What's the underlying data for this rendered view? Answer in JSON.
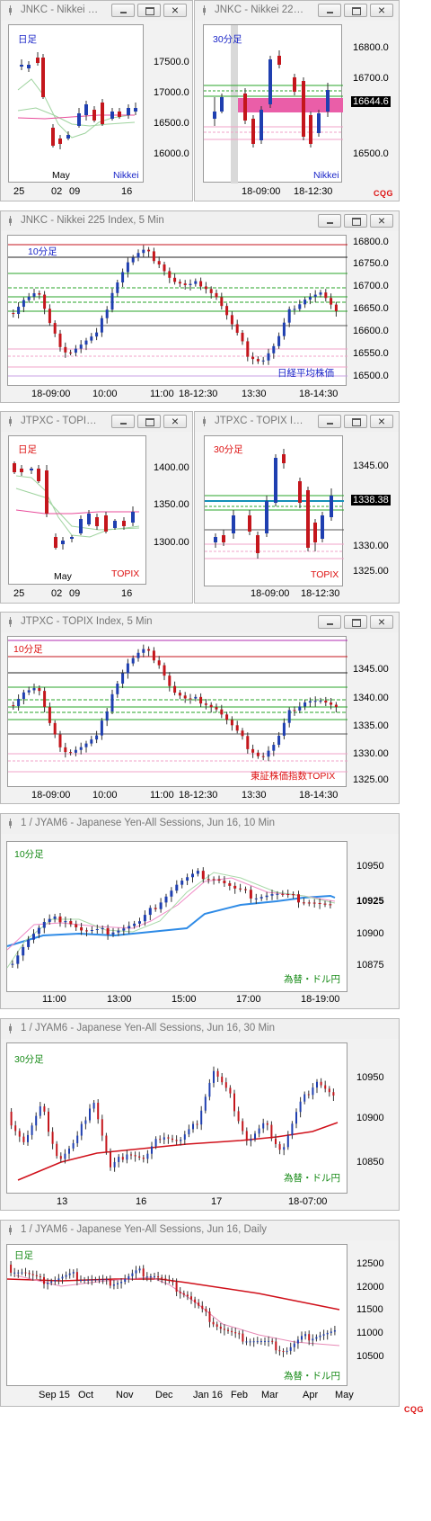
{
  "windows": {
    "w1": {
      "title": "JNKC - Nikkei 22...",
      "corner": "日足",
      "source": "Nikkei",
      "yticks": [
        "17500.0",
        "17000.0",
        "16500.0",
        "16000.0"
      ],
      "xticks": [
        "25",
        "02",
        "09",
        "16"
      ],
      "month": "May"
    },
    "w2": {
      "title": "JNKC - Nikkei 225 ...",
      "corner": "30分足",
      "source": "Nikkei",
      "yticks": [
        "16800.0",
        "16700.0",
        "16500.0"
      ],
      "price": "16644.6",
      "xticks": [
        "18-09:00",
        "18-12:30"
      ]
    },
    "w3": {
      "title": "JNKC - Nikkei 225 Index, 5 Min",
      "corner": "10分足",
      "source": "日経平均株価",
      "yticks": [
        "16800.0",
        "16750.0",
        "16700.0",
        "16650.0",
        "16600.0",
        "16550.0",
        "16500.0"
      ],
      "xticks": [
        "18-09:00",
        "10:00",
        "11:00",
        "18-12:30",
        "13:30",
        "18-14:30"
      ]
    },
    "w4": {
      "title": "JTPXC - TOPIX In...",
      "corner": "日足",
      "source": "TOPIX",
      "yticks": [
        "1400.00",
        "1350.00",
        "1300.00"
      ],
      "xticks": [
        "25",
        "02",
        "09",
        "16"
      ],
      "month": "May"
    },
    "w5": {
      "title": "JTPXC - TOPIX Ind...",
      "corner": "30分足",
      "source": "TOPIX",
      "yticks": [
        "1345.00",
        "1330.00",
        "1325.00"
      ],
      "price": "1338.38",
      "xticks": [
        "18-09:00",
        "18-12:30"
      ]
    },
    "w6": {
      "title": "JTPXC - TOPIX Index, 5 Min",
      "corner": "10分足",
      "source": "東証株価指数TOPIX",
      "yticks": [
        "1345.00",
        "1340.00",
        "1335.00",
        "1330.00",
        "1325.00"
      ],
      "xticks": [
        "18-09:00",
        "10:00",
        "11:00",
        "18-12:30",
        "13:30",
        "18-14:30"
      ]
    },
    "w7": {
      "title": "1 / JYAM6 - Japanese Yen-All Sessions, Jun 16, 10 Min",
      "corner": "10分足",
      "source": "為替・ドル円",
      "yticks": [
        "10950",
        "10900",
        "10875"
      ],
      "price": "10925",
      "xticks": [
        "11:00",
        "13:00",
        "15:00",
        "17:00",
        "18-19:00"
      ]
    },
    "w8": {
      "title": "1 / JYAM6 - Japanese Yen-All Sessions, Jun 16, 30 Min",
      "corner": "30分足",
      "source": "為替・ドル円",
      "yticks": [
        "10950",
        "10900",
        "10850"
      ],
      "xticks": [
        "13",
        "16",
        "17",
        "18-07:00"
      ]
    },
    "w9": {
      "title": "1 / JYAM6 - Japanese Yen-All Sessions, Jun 16, Daily",
      "corner": "日足",
      "source": "為替・ドル円",
      "yticks": [
        "12500",
        "12000",
        "11500",
        "11000",
        "10500"
      ],
      "xticks": [
        "Sep 15",
        "Oct",
        "Nov",
        "Dec",
        "Jan 16",
        "Feb",
        "Mar",
        "Apr",
        "May"
      ]
    }
  },
  "logo": "CQG",
  "colors": {
    "up": "#1f3fb0",
    "down": "#c4161c",
    "band": "#f28fc8",
    "zone": "#ea5ea8",
    "ma": "#e84b9a"
  }
}
